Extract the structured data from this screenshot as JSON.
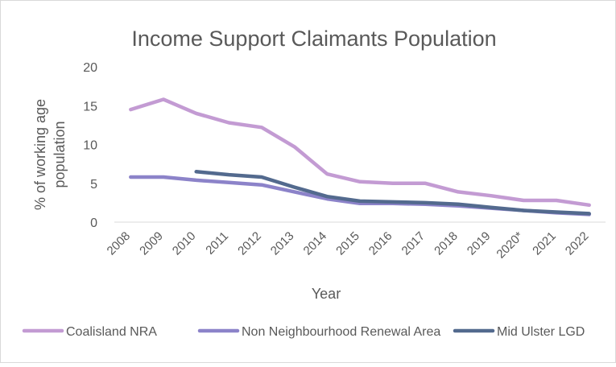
{
  "chart_data": {
    "type": "line",
    "title": "Income Support Claimants Population",
    "xlabel": "Year",
    "ylabel": "% of working age population",
    "ylabel_lines": [
      "% of working age",
      "population"
    ],
    "categories": [
      "2008",
      "2009",
      "2010",
      "2011",
      "2012",
      "2013",
      "2014",
      "2015",
      "2016",
      "2017",
      "2018",
      "2019",
      "2020*",
      "2021",
      "2022"
    ],
    "ylim": [
      0,
      20
    ],
    "yticks": [
      0,
      5,
      10,
      15,
      20
    ],
    "grid": false,
    "legend": "bottom",
    "series": [
      {
        "name": "Coalisland NRA",
        "color": "#c39bd3",
        "values": [
          14.5,
          15.8,
          14.0,
          12.8,
          12.2,
          9.7,
          6.2,
          5.2,
          5.0,
          5.0,
          3.9,
          3.4,
          2.8,
          2.8,
          2.2
        ]
      },
      {
        "name": "Non Neighbourhood Renewal Area",
        "color": "#8c83c9",
        "values": [
          5.8,
          5.8,
          5.4,
          5.1,
          4.8,
          3.9,
          3.0,
          2.4,
          2.4,
          2.3,
          2.1,
          1.8,
          1.5,
          1.2,
          1.0
        ]
      },
      {
        "name": "Mid Ulster LGD",
        "color": "#536a8e",
        "values": [
          null,
          null,
          6.5,
          6.1,
          5.8,
          4.5,
          3.3,
          2.7,
          2.6,
          2.5,
          2.3,
          1.9,
          1.5,
          1.3,
          1.1
        ]
      }
    ]
  }
}
